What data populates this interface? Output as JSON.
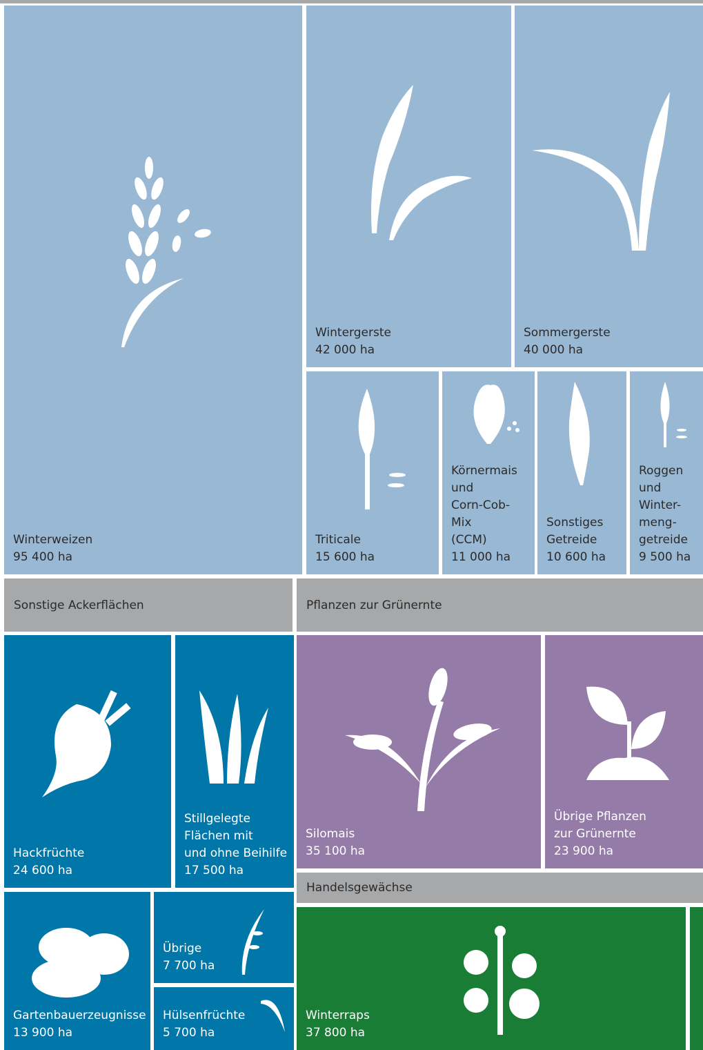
{
  "tiles": [
    {
      "label_lines": [
        "Winterweizen"
      ],
      "value": "95 400 ha"
    },
    {
      "label_lines": [
        "Wintergerste"
      ],
      "value": "42 000 ha"
    },
    {
      "label_lines": [
        "Sommergerste"
      ],
      "value": "40 000 ha"
    },
    {
      "label_lines": [
        "Triticale"
      ],
      "value": "15 600 ha"
    },
    {
      "label_lines": [
        "Körnermais",
        "und",
        "Corn-Cob-",
        "Mix",
        "(CCM)"
      ],
      "value": "11 000 ha"
    },
    {
      "label_lines": [
        "Sonstiges",
        "Getreide"
      ],
      "value": "10 600 ha"
    },
    {
      "label_lines": [
        "Roggen",
        "und",
        "Winter-",
        "meng-",
        "getreide"
      ],
      "value": "9 500 ha"
    },
    {
      "label_lines": [
        "Hackfrüchte"
      ],
      "value": "24 600 ha"
    },
    {
      "label_lines": [
        "Stillgelegte",
        "Flächen mit",
        "und ohne Beihilfe"
      ],
      "value": "17 500 ha"
    },
    {
      "label_lines": [
        "Gartenbauerzeugnisse"
      ],
      "value": "13 900 ha"
    },
    {
      "label_lines": [
        "Übrige"
      ],
      "value": "7 700 ha"
    },
    {
      "label_lines": [
        "Hülsenfrüchte"
      ],
      "value": "5 700 ha"
    },
    {
      "label_lines": [
        "Silomais"
      ],
      "value": "35 100 ha"
    },
    {
      "label_lines": [
        "Übrige Pflanzen",
        "zur Grünernte"
      ],
      "value": "23 900 ha"
    },
    {
      "label_lines": [
        "Winterraps"
      ],
      "value": "37 800 ha"
    }
  ],
  "headers": [
    "Sonstige Ackerflächen",
    "Pflanzen zur Grünernte",
    "Handelsgewächse"
  ]
}
